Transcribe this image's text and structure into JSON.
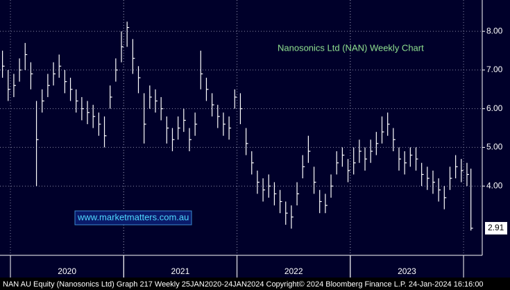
{
  "chart_data": {
    "type": "ohlc",
    "annotation": "Nanosonics Ltd (NAN) Weekly Chart",
    "watermark": "www.marketmatters.com.au",
    "footer": "NAN AU Equity (Nanosonics Ltd) Graph 217  Weekly 25JAN2020-24JAN2024  Copyright© 2024 Bloomberg Finance L.P.   24-Jan-2024 16:16:00",
    "color": "#ffffff",
    "x": [
      2019.93,
      2019.98,
      2020.03,
      2020.08,
      2020.13,
      2020.18,
      2020.23,
      2020.28,
      2020.33,
      2020.38,
      2020.43,
      2020.48,
      2020.53,
      2020.58,
      2020.63,
      2020.68,
      2020.73,
      2020.78,
      2020.83,
      2020.88,
      2020.93,
      2020.98,
      2021.03,
      2021.08,
      2021.13,
      2021.18,
      2021.23,
      2021.28,
      2021.33,
      2021.38,
      2021.43,
      2021.48,
      2021.53,
      2021.58,
      2021.63,
      2021.68,
      2021.73,
      2021.78,
      2021.83,
      2021.88,
      2021.93,
      2021.98,
      2022.03,
      2022.08,
      2022.13,
      2022.18,
      2022.23,
      2022.28,
      2022.33,
      2022.38,
      2022.43,
      2022.48,
      2022.53,
      2022.58,
      2022.63,
      2022.68,
      2022.73,
      2022.78,
      2022.83,
      2022.88,
      2022.93,
      2022.98,
      2023.03,
      2023.08,
      2023.13,
      2023.18,
      2023.23,
      2023.28,
      2023.33,
      2023.38,
      2023.43,
      2023.48,
      2023.53,
      2023.58,
      2023.63,
      2023.68,
      2023.73,
      2023.78,
      2023.83,
      2023.88,
      2023.93,
      2023.98,
      2024.03,
      2024.065
    ],
    "high": [
      7.5,
      7.0,
      6.9,
      7.3,
      7.7,
      7.2,
      6.2,
      6.5,
      6.9,
      7.2,
      7.4,
      7.0,
      6.8,
      6.5,
      6.3,
      6.2,
      6.1,
      5.9,
      5.8,
      6.6,
      7.3,
      8.0,
      8.25,
      7.8,
      7.1,
      6.4,
      6.6,
      6.5,
      6.3,
      5.8,
      5.5,
      5.8,
      6.0,
      5.5,
      5.9,
      7.5,
      6.8,
      6.4,
      6.1,
      5.9,
      5.8,
      6.5,
      6.4,
      5.5,
      4.9,
      4.4,
      4.2,
      4.3,
      4.1,
      3.9,
      3.6,
      3.5,
      4.1,
      4.8,
      5.3,
      4.5,
      3.9,
      3.8,
      4.3,
      4.9,
      5.0,
      4.7,
      5.0,
      5.2,
      5.0,
      5.2,
      5.4,
      5.8,
      5.9,
      5.5,
      5.0,
      4.9,
      5.0,
      5.0,
      4.6,
      4.5,
      4.4,
      4.2,
      4.0,
      4.5,
      4.8,
      4.7,
      4.6,
      4.45
    ],
    "low": [
      6.8,
      6.2,
      6.3,
      6.7,
      7.0,
      6.5,
      4.0,
      5.9,
      6.3,
      6.6,
      6.8,
      6.4,
      6.2,
      5.9,
      5.7,
      5.6,
      5.5,
      5.3,
      5.0,
      6.0,
      6.7,
      7.2,
      7.6,
      6.9,
      6.4,
      5.1,
      6.0,
      5.9,
      5.7,
      5.1,
      4.9,
      5.2,
      5.4,
      4.9,
      5.3,
      6.5,
      6.2,
      5.8,
      5.5,
      5.3,
      5.2,
      6.0,
      5.6,
      4.8,
      4.3,
      3.8,
      3.6,
      3.7,
      3.5,
      3.3,
      3.0,
      2.9,
      3.5,
      4.2,
      4.6,
      3.8,
      3.3,
      3.3,
      3.7,
      4.3,
      4.5,
      4.1,
      4.3,
      4.6,
      4.4,
      4.6,
      4.8,
      5.1,
      5.3,
      4.9,
      4.4,
      4.3,
      4.5,
      4.4,
      4.0,
      3.9,
      3.8,
      3.6,
      3.4,
      3.9,
      4.2,
      4.1,
      4.0,
      2.85
    ],
    "close": [
      7.1,
      6.5,
      6.6,
      7.0,
      7.4,
      6.9,
      5.2,
      6.2,
      6.6,
      6.9,
      7.1,
      6.7,
      6.5,
      6.2,
      6.0,
      5.9,
      5.8,
      5.6,
      5.3,
      6.3,
      7.0,
      7.6,
      8.1,
      7.3,
      6.8,
      5.6,
      6.3,
      6.2,
      6.0,
      5.5,
      5.2,
      5.5,
      5.7,
      5.2,
      5.6,
      6.9,
      6.5,
      6.1,
      5.8,
      5.6,
      5.5,
      6.3,
      6.0,
      5.1,
      4.6,
      4.1,
      3.9,
      4.0,
      3.8,
      3.6,
      3.3,
      3.2,
      3.8,
      4.5,
      4.9,
      4.1,
      3.6,
      3.5,
      4.0,
      4.6,
      4.8,
      4.4,
      4.6,
      4.9,
      4.7,
      4.9,
      5.1,
      5.4,
      5.6,
      5.2,
      4.7,
      4.6,
      4.8,
      4.7,
      4.3,
      4.2,
      4.1,
      3.9,
      3.7,
      4.2,
      4.5,
      4.4,
      4.3,
      2.91
    ],
    "xlim": [
      2019.908,
      2024.165
    ],
    "xticks": [
      {
        "value": 2020.5,
        "label": "2020"
      },
      {
        "value": 2021.5,
        "label": "2021"
      },
      {
        "value": 2022.5,
        "label": "2022"
      },
      {
        "value": 2023.5,
        "label": "2023"
      }
    ],
    "ylim": [
      2.21,
      8.81
    ],
    "yticks": [
      {
        "value": 4,
        "label": "4.00"
      },
      {
        "value": 5,
        "label": "5.00"
      },
      {
        "value": 6,
        "label": "6.00"
      },
      {
        "value": 7,
        "label": "7.00"
      },
      {
        "value": 8,
        "label": "8.00"
      }
    ],
    "grid": true
  }
}
